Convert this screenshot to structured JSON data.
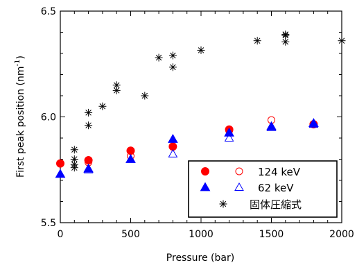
{
  "chart_data": {
    "type": "scatter",
    "title": "",
    "xlabel": "Pressure (bar)",
    "ylabel_main": "First peak position (nm",
    "ylabel_sup": "-1",
    "ylabel_close": ")",
    "xlim": [
      0,
      2000
    ],
    "ylim": [
      5.5,
      6.5
    ],
    "xticks": [
      0,
      500,
      1000,
      1500,
      2000
    ],
    "xtick_labels": [
      "0",
      "500",
      "1000",
      "1500",
      "2000"
    ],
    "yticks": [
      5.5,
      6.0,
      6.5
    ],
    "ytick_labels": [
      "5.5",
      "6.0",
      "6.5"
    ],
    "grid": false,
    "legend_position": "bottom-right",
    "legend": {
      "row1_label": "124 keV",
      "row2_label": "62 keV",
      "row3_label": "固体圧縮式"
    },
    "series": [
      {
        "marker": "filled-circle",
        "color": "#ff0000",
        "x": [
          0,
          200,
          500,
          800,
          1200,
          1800
        ],
        "y": [
          5.78,
          5.795,
          5.84,
          5.86,
          5.94,
          5.965
        ]
      },
      {
        "marker": "open-circle",
        "color": "#ff0000",
        "x": [
          200,
          500,
          1200,
          1500,
          1800
        ],
        "y": [
          5.785,
          5.815,
          5.935,
          5.985,
          5.965
        ]
      },
      {
        "marker": "filled-triangle",
        "color": "#0000ff",
        "x": [
          0,
          200,
          500,
          800,
          1200,
          1500,
          1800
        ],
        "y": [
          5.73,
          5.755,
          5.8,
          5.895,
          5.925,
          5.955,
          5.97
        ]
      },
      {
        "marker": "open-triangle",
        "color": "#0000ff",
        "x": [
          200,
          500,
          800,
          1200,
          1500,
          1800
        ],
        "y": [
          5.75,
          5.8,
          5.825,
          5.9,
          5.95,
          5.965
        ]
      },
      {
        "marker": "asterisk",
        "color": "#000000",
        "x": [
          100,
          100,
          100,
          100,
          200,
          200,
          300,
          400,
          400,
          600,
          700,
          800,
          800,
          1000,
          1400,
          1600,
          1600,
          1600,
          2000
        ],
        "y": [
          5.845,
          5.8,
          5.775,
          5.76,
          6.02,
          5.96,
          6.05,
          6.15,
          6.125,
          6.1,
          6.28,
          6.29,
          6.235,
          6.315,
          6.36,
          6.39,
          6.385,
          6.355,
          6.36
        ]
      }
    ]
  }
}
